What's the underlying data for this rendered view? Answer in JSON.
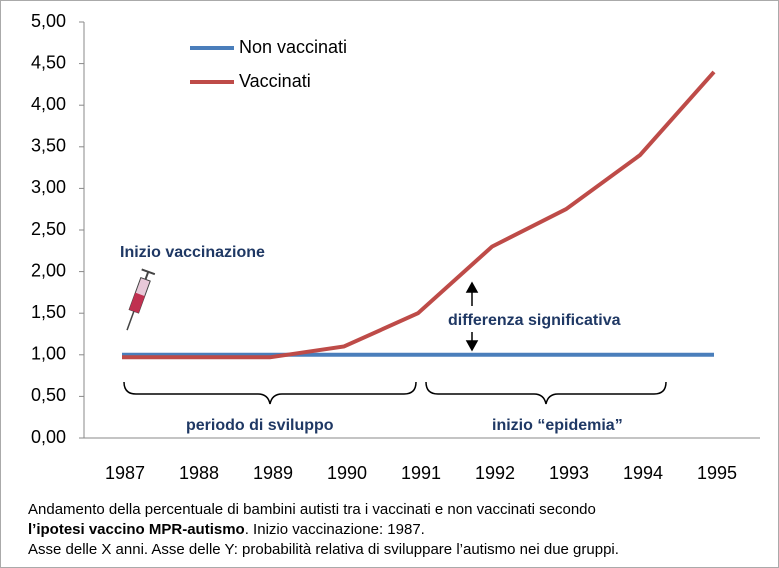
{
  "chart_data": {
    "type": "line",
    "categories": [
      "1987",
      "1988",
      "1989",
      "1990",
      "1991",
      "1992",
      "1993",
      "1994",
      "1995"
    ],
    "series": [
      {
        "name": "Non vaccinati",
        "color": "#4a7ebb",
        "values": [
          1.0,
          1.0,
          1.0,
          1.0,
          1.0,
          1.0,
          1.0,
          1.0,
          1.0
        ]
      },
      {
        "name": "Vaccinati",
        "color": "#be4b48",
        "values": [
          0.97,
          0.97,
          0.97,
          1.1,
          1.5,
          2.3,
          2.75,
          3.4,
          4.4
        ]
      }
    ],
    "ylim": [
      0,
      5
    ],
    "yticks": [
      {
        "value": 0,
        "label": "0,00"
      },
      {
        "value": 0.5,
        "label": "0,50"
      },
      {
        "value": 1,
        "label": "1,00"
      },
      {
        "value": 1.5,
        "label": "1,50"
      },
      {
        "value": 2,
        "label": "2,00"
      },
      {
        "value": 2.5,
        "label": "2,50"
      },
      {
        "value": 3,
        "label": "3,00"
      },
      {
        "value": 3.5,
        "label": "3,50"
      },
      {
        "value": 4,
        "label": "4,00"
      },
      {
        "value": 4.5,
        "label": "4,50"
      },
      {
        "value": 5,
        "label": "5,00"
      }
    ],
    "grid": false,
    "legend": "top-left",
    "annotations": [
      "Inizio vaccinazione",
      "differenza significativa",
      "periodo di sviluppo",
      "inizio “epidemia”"
    ],
    "caption": [
      [
        "Andamento della percentuale di bambini autisti tra i vaccinati e non vaccinati secondo"
      ],
      [
        "l’ipotesi vaccino MPR-autismo",
        ". Inizio vaccinazione: 1987."
      ],
      [
        "Asse delle X anni. Asse delle Y: probabilità relativa di sviluppare l’autismo nei due gruppi."
      ]
    ]
  }
}
